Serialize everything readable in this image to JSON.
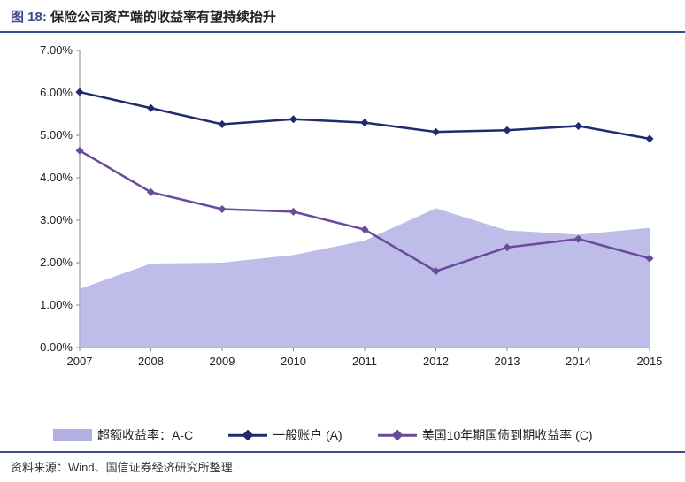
{
  "title": {
    "figno": "图 18:",
    "text": "保险公司资产端的收益率有望持续抬升"
  },
  "source": "资料来源：Wind、国信证券经济研究所整理",
  "chart": {
    "type": "line+area",
    "ylim": [
      0,
      7
    ],
    "ytick_step": 1,
    "ytick_format": "pct2",
    "background_color": "#ffffff",
    "categories": [
      "2007",
      "2008",
      "2009",
      "2010",
      "2011",
      "2012",
      "2013",
      "2014",
      "2015"
    ],
    "series": [
      {
        "key": "excess",
        "name": "超额收益率：A-C",
        "type": "area",
        "color": "#b3b0e4",
        "opacity": 0.85,
        "values": [
          1.38,
          1.98,
          2.0,
          2.18,
          2.52,
          3.28,
          2.76,
          2.66,
          2.82
        ]
      },
      {
        "key": "general",
        "name": "一般账户 (A)",
        "type": "line",
        "color": "#1f2b6e",
        "marker": "diamond",
        "marker_size": 9,
        "line_width": 2.5,
        "values": [
          6.02,
          5.64,
          5.26,
          5.38,
          5.3,
          5.08,
          5.12,
          5.22,
          4.92
        ]
      },
      {
        "key": "ust10y",
        "name": "美国10年期国债到期收益率 (C)",
        "type": "line",
        "color": "#6a4a9a",
        "marker": "diamond",
        "marker_size": 9,
        "line_width": 2.5,
        "values": [
          4.64,
          3.66,
          3.26,
          3.2,
          2.78,
          1.8,
          2.36,
          2.56,
          2.1
        ]
      }
    ],
    "legend": {
      "items": [
        {
          "series": "excess",
          "label": "超额收益率：A-C"
        },
        {
          "series": "general",
          "label": "一般账户 (A)"
        },
        {
          "series": "ust10y",
          "label": "美国10年期国债到期收益率 (C)"
        }
      ]
    }
  }
}
